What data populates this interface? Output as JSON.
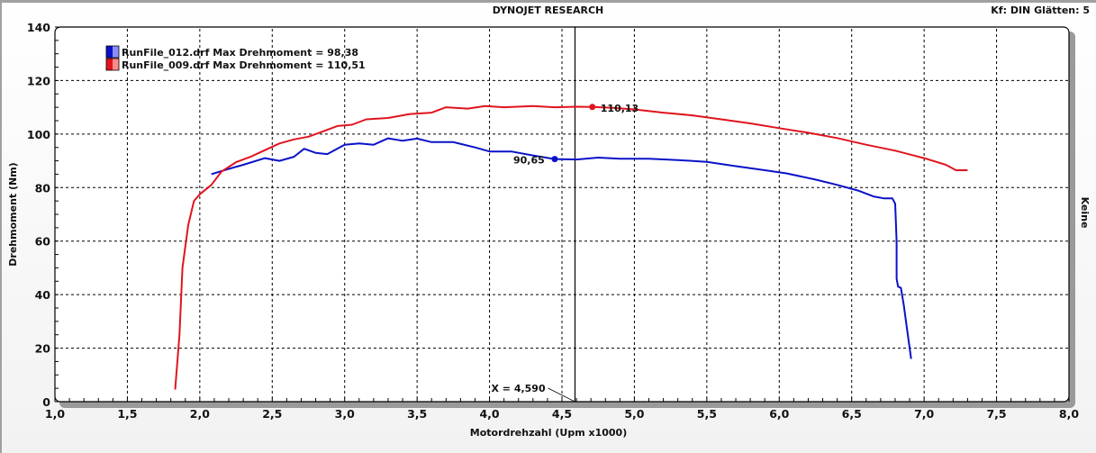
{
  "header": {
    "title": "DYNOJET RESEARCH",
    "settings": "Kf: DIN  Glätten: 5"
  },
  "right_label": "Keine",
  "cursor": {
    "label": "X = 4,590",
    "x": 4.59
  },
  "colors": {
    "run1": "#0a12c8",
    "run2": "#e0141e",
    "grid": "#000000"
  },
  "chart_data": {
    "type": "line",
    "title": "DYNOJET RESEARCH",
    "xlabel": "Motordrehzahl (Upm x1000)",
    "ylabel": "Drehmoment (Nm)",
    "xlim": [
      1.0,
      8.0
    ],
    "ylim": [
      0,
      140
    ],
    "x_ticks": [
      "1,0",
      "1,5",
      "2,0",
      "2,5",
      "3,0",
      "3,5",
      "4,0",
      "4,5",
      "5,0",
      "5,5",
      "6,0",
      "6,5",
      "7,0",
      "7,5",
      "8,0"
    ],
    "y_ticks": [
      "0",
      "20",
      "40",
      "60",
      "80",
      "100",
      "120",
      "140"
    ],
    "grid": true,
    "legend_position": "top-left",
    "series": [
      {
        "name": "RunFile_012.drf Max Drehmoment = 98,38",
        "color": "#0a12c8",
        "marker": {
          "x": 4.45,
          "y": 90.65,
          "label": "90,65"
        },
        "points": [
          [
            2.08,
            85.0
          ],
          [
            2.2,
            87.0
          ],
          [
            2.3,
            88.5
          ],
          [
            2.45,
            91.0
          ],
          [
            2.55,
            90.0
          ],
          [
            2.65,
            91.5
          ],
          [
            2.72,
            94.5
          ],
          [
            2.8,
            93.0
          ],
          [
            2.88,
            92.5
          ],
          [
            3.0,
            96.0
          ],
          [
            3.1,
            96.5
          ],
          [
            3.2,
            96.0
          ],
          [
            3.3,
            98.4
          ],
          [
            3.4,
            97.5
          ],
          [
            3.5,
            98.3
          ],
          [
            3.6,
            97.0
          ],
          [
            3.75,
            97.0
          ],
          [
            3.9,
            95.0
          ],
          [
            4.0,
            93.5
          ],
          [
            4.15,
            93.5
          ],
          [
            4.3,
            92.0
          ],
          [
            4.45,
            90.65
          ],
          [
            4.6,
            90.5
          ],
          [
            4.75,
            91.2
          ],
          [
            4.9,
            90.8
          ],
          [
            5.1,
            90.8
          ],
          [
            5.3,
            90.3
          ],
          [
            5.5,
            89.6
          ],
          [
            5.7,
            88.0
          ],
          [
            5.9,
            86.5
          ],
          [
            6.05,
            85.3
          ],
          [
            6.25,
            83.0
          ],
          [
            6.4,
            81.0
          ],
          [
            6.55,
            78.8
          ],
          [
            6.65,
            76.7
          ],
          [
            6.72,
            76.0
          ],
          [
            6.78,
            76.0
          ],
          [
            6.8,
            74.0
          ],
          [
            6.81,
            60.0
          ],
          [
            6.81,
            46.0
          ],
          [
            6.82,
            43.0
          ],
          [
            6.84,
            42.5
          ],
          [
            6.86,
            36.0
          ],
          [
            6.88,
            28.0
          ],
          [
            6.9,
            20.0
          ],
          [
            6.91,
            16.0
          ]
        ]
      },
      {
        "name": "RunFile_009.drf Max Drehmoment = 110,51",
        "color": "#e0141e",
        "marker": {
          "x": 4.71,
          "y": 110.13,
          "label": "110,13"
        },
        "points": [
          [
            1.83,
            4.5
          ],
          [
            1.86,
            25.0
          ],
          [
            1.88,
            50.0
          ],
          [
            1.92,
            66.0
          ],
          [
            1.96,
            75.0
          ],
          [
            2.0,
            77.5
          ],
          [
            2.08,
            81.0
          ],
          [
            2.15,
            86.0
          ],
          [
            2.25,
            89.5
          ],
          [
            2.35,
            91.5
          ],
          [
            2.45,
            94.0
          ],
          [
            2.55,
            96.5
          ],
          [
            2.65,
            98.0
          ],
          [
            2.75,
            99.0
          ],
          [
            2.85,
            101.0
          ],
          [
            2.95,
            103.0
          ],
          [
            3.05,
            103.5
          ],
          [
            3.15,
            105.5
          ],
          [
            3.3,
            106.0
          ],
          [
            3.45,
            107.5
          ],
          [
            3.6,
            108.0
          ],
          [
            3.7,
            110.0
          ],
          [
            3.85,
            109.5
          ],
          [
            3.97,
            110.5
          ],
          [
            4.1,
            110.0
          ],
          [
            4.3,
            110.5
          ],
          [
            4.45,
            110.0
          ],
          [
            4.6,
            110.2
          ],
          [
            4.71,
            110.13
          ],
          [
            4.85,
            109.8
          ],
          [
            5.0,
            109.2
          ],
          [
            5.2,
            108.0
          ],
          [
            5.4,
            107.0
          ],
          [
            5.6,
            105.5
          ],
          [
            5.8,
            104.0
          ],
          [
            6.0,
            102.2
          ],
          [
            6.2,
            100.5
          ],
          [
            6.4,
            98.5
          ],
          [
            6.6,
            96.0
          ],
          [
            6.8,
            93.8
          ],
          [
            7.0,
            91.0
          ],
          [
            7.15,
            88.5
          ],
          [
            7.22,
            86.5
          ],
          [
            7.3,
            86.5
          ]
        ]
      }
    ]
  }
}
